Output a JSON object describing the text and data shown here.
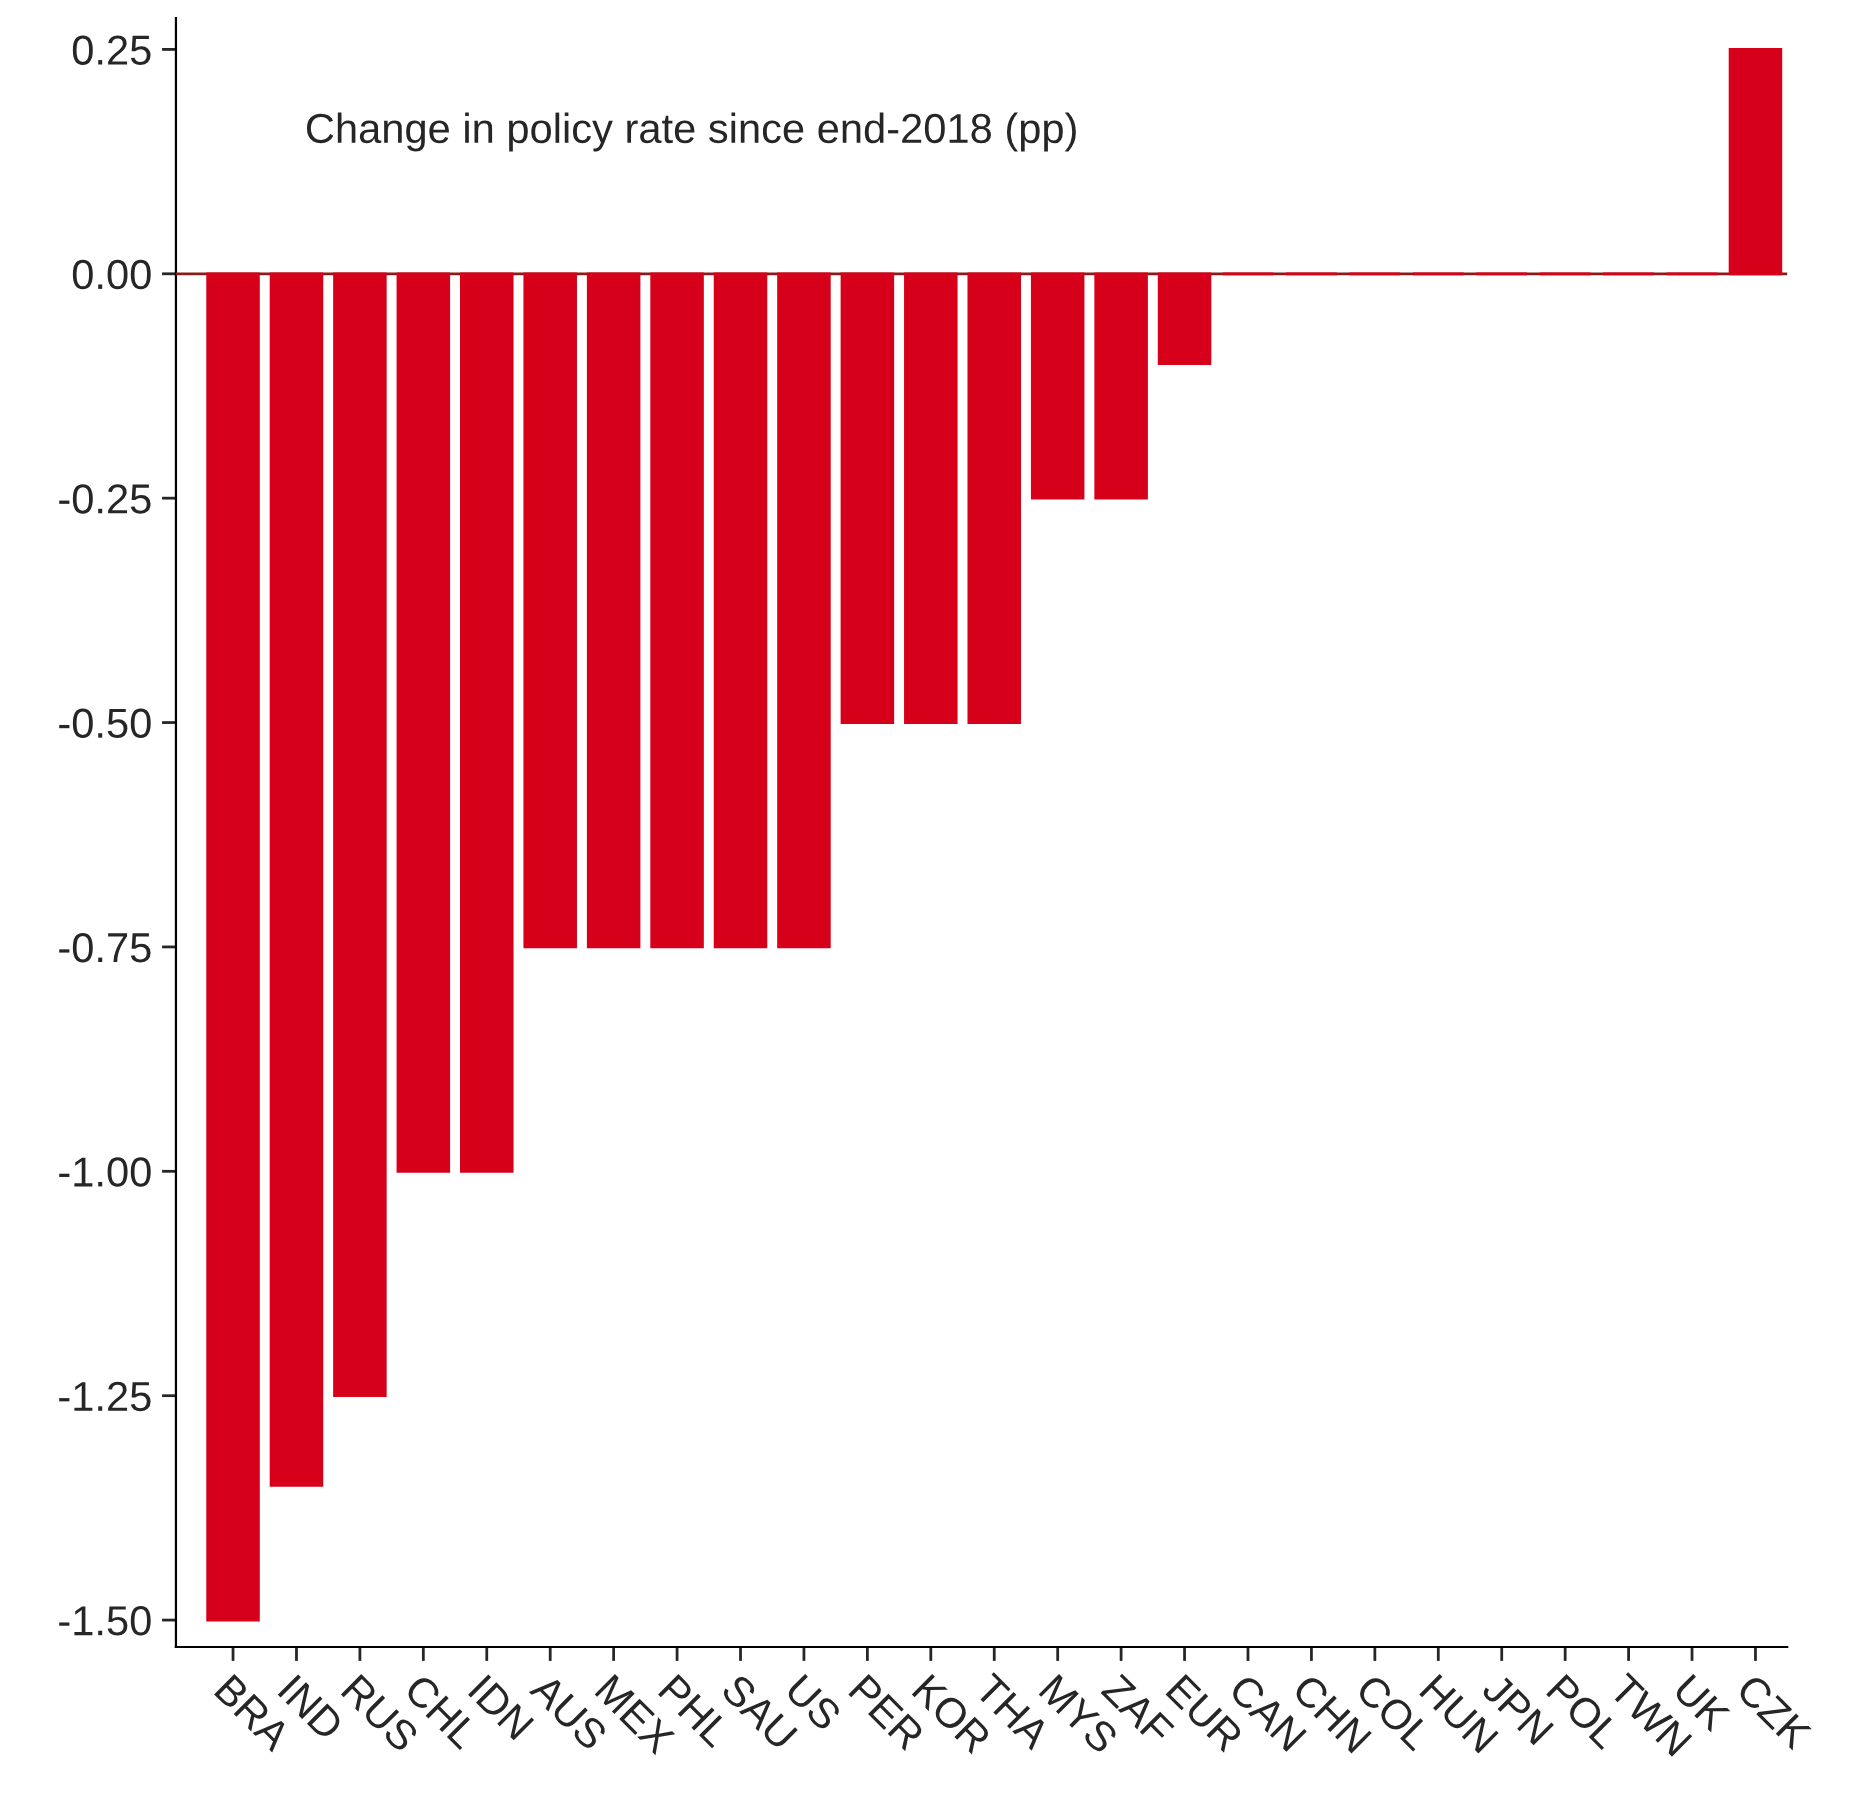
{
  "chart_data": {
    "type": "bar",
    "title": "Change in policy rate since end-2018 (pp)",
    "categories": [
      "BRA",
      "IND",
      "RUS",
      "CHL",
      "IDN",
      "AUS",
      "MEX",
      "PHL",
      "SAU",
      "US",
      "PER",
      "KOR",
      "THA",
      "MYS",
      "ZAF",
      "EUR",
      "CAN",
      "CHN",
      "COL",
      "HUN",
      "JPN",
      "POL",
      "TWN",
      "UK",
      "CZK"
    ],
    "values": [
      -1.5,
      -1.35,
      -1.25,
      -1.0,
      -1.0,
      -0.75,
      -0.75,
      -0.75,
      -0.75,
      -0.75,
      -0.5,
      -0.5,
      -0.5,
      -0.25,
      -0.25,
      -0.1,
      0,
      0,
      0,
      0,
      0,
      0,
      0,
      0,
      0.25
    ],
    "color": "#d7001a",
    "ylim": [
      -1.53,
      0.285
    ],
    "yticks": [
      {
        "value": -1.5,
        "label": "-1.50"
      },
      {
        "value": -1.25,
        "label": "-1.25"
      },
      {
        "value": -1.0,
        "label": "-1.00"
      },
      {
        "value": -0.75,
        "label": "-0.75"
      },
      {
        "value": -0.5,
        "label": "-0.50"
      },
      {
        "value": -0.25,
        "label": "-0.25"
      },
      {
        "value": 0,
        "label": "0.00"
      },
      {
        "value": 0.25,
        "label": "0.25"
      }
    ],
    "ref_lines": [
      {
        "axis": "y",
        "value": 0,
        "color": "#8b1a1a"
      }
    ],
    "grid": false
  }
}
